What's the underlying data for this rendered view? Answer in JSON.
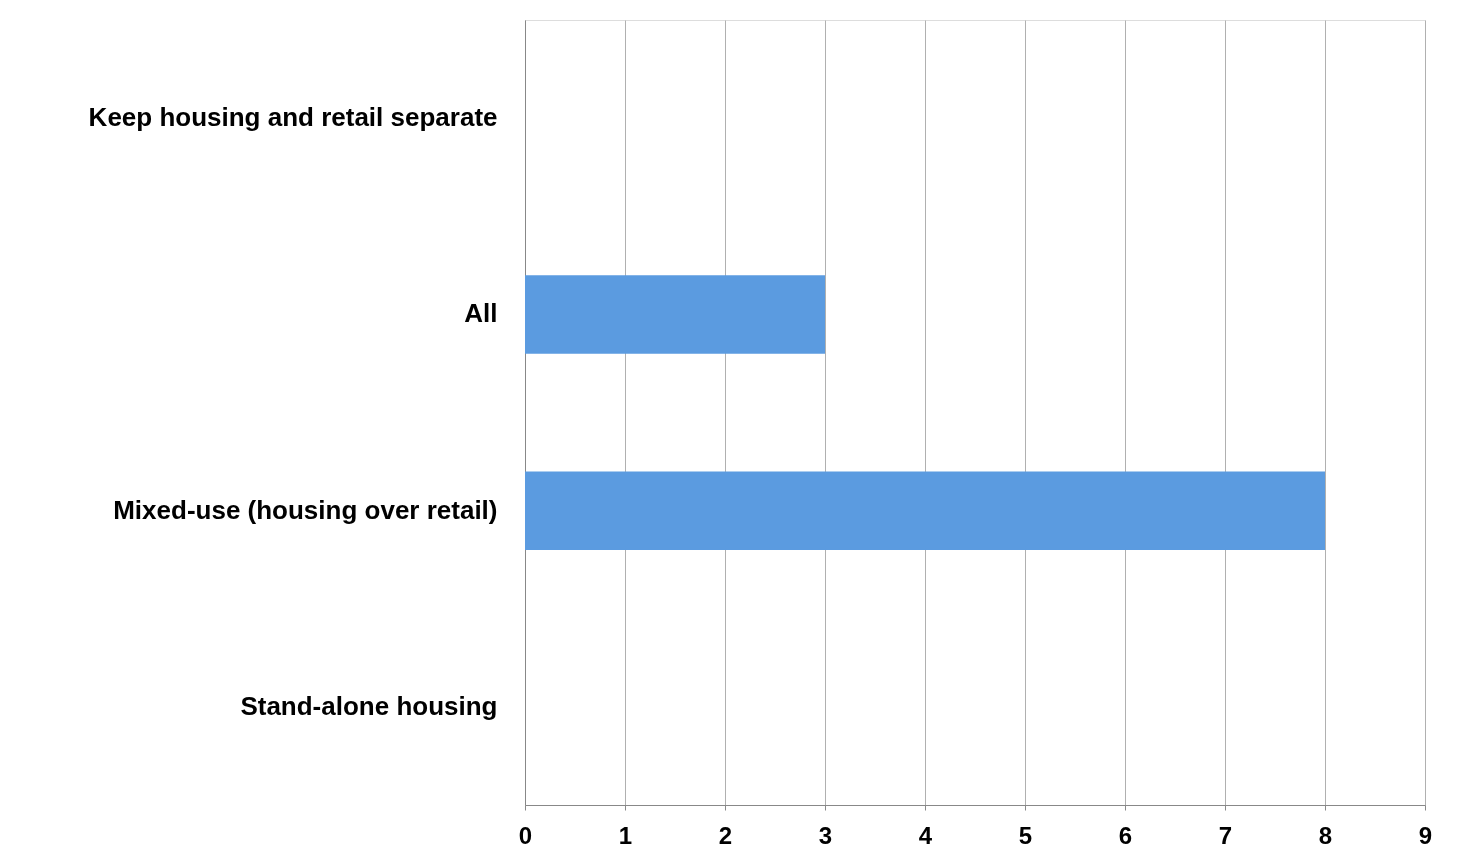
{
  "chart_data": {
    "type": "bar",
    "orientation": "horizontal",
    "categories": [
      "Keep housing and retail separate",
      "All",
      "Mixed-use (housing over retail)",
      "Stand-alone housing"
    ],
    "values": [
      0,
      3,
      8,
      0
    ],
    "color": "#5b9be0",
    "xlim": [
      0,
      9
    ],
    "xticks": [
      0,
      1,
      2,
      3,
      4,
      5,
      6,
      7,
      8,
      9
    ],
    "grid": "x"
  }
}
